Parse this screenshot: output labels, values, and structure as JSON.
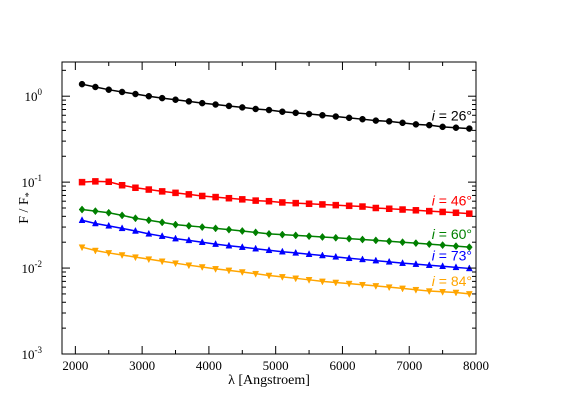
{
  "chart_data": {
    "type": "line",
    "xlabel": "λ [Angstroem]",
    "ylabel_main": "F / F",
    "ylabel_sub": "*",
    "xlim": [
      1800,
      8000
    ],
    "ylim": [
      0.001,
      2.5
    ],
    "yscale": "log",
    "grid": false,
    "legend": "inline labels at the right end of each curve",
    "x_ticks": [
      {
        "value": 2000,
        "label": "2000"
      },
      {
        "value": 3000,
        "label": "3000"
      },
      {
        "value": 4000,
        "label": "4000"
      },
      {
        "value": 5000,
        "label": "5000"
      },
      {
        "value": 6000,
        "label": "6000"
      },
      {
        "value": 7000,
        "label": "7000"
      },
      {
        "value": 8000,
        "label": "8000"
      }
    ],
    "y_ticks": [
      {
        "value": 0.001,
        "base": "10",
        "exp": "-3"
      },
      {
        "value": 0.01,
        "base": "10",
        "exp": "-2"
      },
      {
        "value": 0.1,
        "base": "10",
        "exp": "-1"
      },
      {
        "value": 1,
        "base": "10",
        "exp": "0"
      }
    ],
    "x": [
      2100,
      2300,
      2500,
      2700,
      2900,
      3100,
      3300,
      3500,
      3700,
      3900,
      4100,
      4300,
      4500,
      4700,
      4900,
      5100,
      5300,
      5500,
      5700,
      5900,
      6100,
      6300,
      6500,
      6700,
      6900,
      7100,
      7300,
      7500,
      7700,
      7900
    ],
    "series": [
      {
        "name": "i = 26°",
        "label_prefix": "i",
        "label_rest": " = 26°",
        "color": "#000000",
        "marker": "circle",
        "values": [
          1.38,
          1.28,
          1.19,
          1.12,
          1.06,
          1.0,
          0.95,
          0.91,
          0.87,
          0.83,
          0.8,
          0.77,
          0.74,
          0.71,
          0.69,
          0.66,
          0.64,
          0.62,
          0.6,
          0.58,
          0.56,
          0.54,
          0.52,
          0.51,
          0.49,
          0.47,
          0.46,
          0.44,
          0.43,
          0.42
        ]
      },
      {
        "name": "i = 46°",
        "label_prefix": "i",
        "label_rest": " = 46°",
        "color": "#ff0000",
        "marker": "square",
        "values": [
          0.1,
          0.102,
          0.101,
          0.092,
          0.086,
          0.082,
          0.078,
          0.075,
          0.072,
          0.069,
          0.067,
          0.065,
          0.063,
          0.061,
          0.06,
          0.058,
          0.057,
          0.056,
          0.055,
          0.054,
          0.053,
          0.052,
          0.05,
          0.049,
          0.048,
          0.047,
          0.046,
          0.045,
          0.044,
          0.043
        ]
      },
      {
        "name": "i = 60°",
        "label_prefix": "i",
        "label_rest": " = 60°",
        "color": "#008000",
        "marker": "diamond",
        "values": [
          0.048,
          0.046,
          0.044,
          0.041,
          0.038,
          0.036,
          0.034,
          0.032,
          0.031,
          0.03,
          0.029,
          0.028,
          0.027,
          0.026,
          0.025,
          0.0245,
          0.024,
          0.0235,
          0.023,
          0.0225,
          0.022,
          0.0215,
          0.021,
          0.0205,
          0.02,
          0.0195,
          0.019,
          0.0185,
          0.018,
          0.0175
        ]
      },
      {
        "name": "i = 73°",
        "label_prefix": "i",
        "label_rest": " = 73°",
        "color": "#0000ff",
        "marker": "triangle-up",
        "values": [
          0.036,
          0.033,
          0.031,
          0.029,
          0.027,
          0.025,
          0.0235,
          0.022,
          0.021,
          0.02,
          0.019,
          0.0182,
          0.0175,
          0.0168,
          0.0161,
          0.0155,
          0.015,
          0.0145,
          0.014,
          0.0135,
          0.013,
          0.0126,
          0.0122,
          0.0118,
          0.0114,
          0.0111,
          0.0108,
          0.0105,
          0.0102,
          0.0099
        ]
      },
      {
        "name": "i = 84°",
        "label_prefix": "i",
        "label_rest": " = 84°",
        "color": "#ffa500",
        "marker": "triangle-down",
        "values": [
          0.0175,
          0.016,
          0.015,
          0.0142,
          0.0134,
          0.0127,
          0.012,
          0.0114,
          0.0108,
          0.0103,
          0.0098,
          0.0094,
          0.009,
          0.0086,
          0.0082,
          0.0079,
          0.0076,
          0.0073,
          0.007,
          0.0068,
          0.0066,
          0.0064,
          0.0062,
          0.006,
          0.0058,
          0.0056,
          0.0054,
          0.0053,
          0.0052,
          0.005
        ]
      }
    ]
  }
}
